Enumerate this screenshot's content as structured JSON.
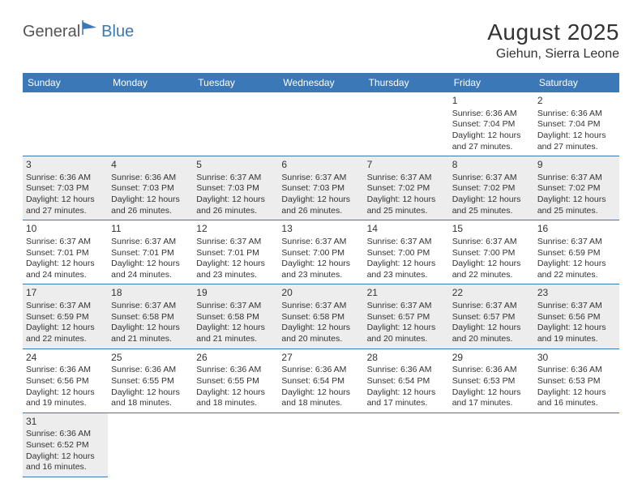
{
  "logo": {
    "part1": "General",
    "part2": "Blue"
  },
  "title": "August 2025",
  "location": "Giehun, Sierra Leone",
  "colors": {
    "header_bg": "#3b78b8",
    "header_text": "#ffffff",
    "shaded_bg": "#ededed",
    "text": "#333333",
    "border": "#3b78b8"
  },
  "weekdays": [
    "Sunday",
    "Monday",
    "Tuesday",
    "Wednesday",
    "Thursday",
    "Friday",
    "Saturday"
  ],
  "grid": [
    [
      {
        "blank": true
      },
      {
        "blank": true
      },
      {
        "blank": true
      },
      {
        "blank": true
      },
      {
        "blank": true
      },
      {
        "day": "1",
        "sunrise": "Sunrise: 6:36 AM",
        "sunset": "Sunset: 7:04 PM",
        "daylight": "Daylight: 12 hours and 27 minutes."
      },
      {
        "day": "2",
        "sunrise": "Sunrise: 6:36 AM",
        "sunset": "Sunset: 7:04 PM",
        "daylight": "Daylight: 12 hours and 27 minutes."
      }
    ],
    [
      {
        "day": "3",
        "shaded": true,
        "sunrise": "Sunrise: 6:36 AM",
        "sunset": "Sunset: 7:03 PM",
        "daylight": "Daylight: 12 hours and 27 minutes."
      },
      {
        "day": "4",
        "shaded": true,
        "sunrise": "Sunrise: 6:36 AM",
        "sunset": "Sunset: 7:03 PM",
        "daylight": "Daylight: 12 hours and 26 minutes."
      },
      {
        "day": "5",
        "shaded": true,
        "sunrise": "Sunrise: 6:37 AM",
        "sunset": "Sunset: 7:03 PM",
        "daylight": "Daylight: 12 hours and 26 minutes."
      },
      {
        "day": "6",
        "shaded": true,
        "sunrise": "Sunrise: 6:37 AM",
        "sunset": "Sunset: 7:03 PM",
        "daylight": "Daylight: 12 hours and 26 minutes."
      },
      {
        "day": "7",
        "shaded": true,
        "sunrise": "Sunrise: 6:37 AM",
        "sunset": "Sunset: 7:02 PM",
        "daylight": "Daylight: 12 hours and 25 minutes."
      },
      {
        "day": "8",
        "shaded": true,
        "sunrise": "Sunrise: 6:37 AM",
        "sunset": "Sunset: 7:02 PM",
        "daylight": "Daylight: 12 hours and 25 minutes."
      },
      {
        "day": "9",
        "shaded": true,
        "sunrise": "Sunrise: 6:37 AM",
        "sunset": "Sunset: 7:02 PM",
        "daylight": "Daylight: 12 hours and 25 minutes."
      }
    ],
    [
      {
        "day": "10",
        "sunrise": "Sunrise: 6:37 AM",
        "sunset": "Sunset: 7:01 PM",
        "daylight": "Daylight: 12 hours and 24 minutes."
      },
      {
        "day": "11",
        "sunrise": "Sunrise: 6:37 AM",
        "sunset": "Sunset: 7:01 PM",
        "daylight": "Daylight: 12 hours and 24 minutes."
      },
      {
        "day": "12",
        "sunrise": "Sunrise: 6:37 AM",
        "sunset": "Sunset: 7:01 PM",
        "daylight": "Daylight: 12 hours and 23 minutes."
      },
      {
        "day": "13",
        "sunrise": "Sunrise: 6:37 AM",
        "sunset": "Sunset: 7:00 PM",
        "daylight": "Daylight: 12 hours and 23 minutes."
      },
      {
        "day": "14",
        "sunrise": "Sunrise: 6:37 AM",
        "sunset": "Sunset: 7:00 PM",
        "daylight": "Daylight: 12 hours and 23 minutes."
      },
      {
        "day": "15",
        "sunrise": "Sunrise: 6:37 AM",
        "sunset": "Sunset: 7:00 PM",
        "daylight": "Daylight: 12 hours and 22 minutes."
      },
      {
        "day": "16",
        "sunrise": "Sunrise: 6:37 AM",
        "sunset": "Sunset: 6:59 PM",
        "daylight": "Daylight: 12 hours and 22 minutes."
      }
    ],
    [
      {
        "day": "17",
        "shaded": true,
        "sunrise": "Sunrise: 6:37 AM",
        "sunset": "Sunset: 6:59 PM",
        "daylight": "Daylight: 12 hours and 22 minutes."
      },
      {
        "day": "18",
        "shaded": true,
        "sunrise": "Sunrise: 6:37 AM",
        "sunset": "Sunset: 6:58 PM",
        "daylight": "Daylight: 12 hours and 21 minutes."
      },
      {
        "day": "19",
        "shaded": true,
        "sunrise": "Sunrise: 6:37 AM",
        "sunset": "Sunset: 6:58 PM",
        "daylight": "Daylight: 12 hours and 21 minutes."
      },
      {
        "day": "20",
        "shaded": true,
        "sunrise": "Sunrise: 6:37 AM",
        "sunset": "Sunset: 6:58 PM",
        "daylight": "Daylight: 12 hours and 20 minutes."
      },
      {
        "day": "21",
        "shaded": true,
        "sunrise": "Sunrise: 6:37 AM",
        "sunset": "Sunset: 6:57 PM",
        "daylight": "Daylight: 12 hours and 20 minutes."
      },
      {
        "day": "22",
        "shaded": true,
        "sunrise": "Sunrise: 6:37 AM",
        "sunset": "Sunset: 6:57 PM",
        "daylight": "Daylight: 12 hours and 20 minutes."
      },
      {
        "day": "23",
        "shaded": true,
        "sunrise": "Sunrise: 6:37 AM",
        "sunset": "Sunset: 6:56 PM",
        "daylight": "Daylight: 12 hours and 19 minutes."
      }
    ],
    [
      {
        "day": "24",
        "sunrise": "Sunrise: 6:36 AM",
        "sunset": "Sunset: 6:56 PM",
        "daylight": "Daylight: 12 hours and 19 minutes."
      },
      {
        "day": "25",
        "sunrise": "Sunrise: 6:36 AM",
        "sunset": "Sunset: 6:55 PM",
        "daylight": "Daylight: 12 hours and 18 minutes."
      },
      {
        "day": "26",
        "sunrise": "Sunrise: 6:36 AM",
        "sunset": "Sunset: 6:55 PM",
        "daylight": "Daylight: 12 hours and 18 minutes."
      },
      {
        "day": "27",
        "sunrise": "Sunrise: 6:36 AM",
        "sunset": "Sunset: 6:54 PM",
        "daylight": "Daylight: 12 hours and 18 minutes."
      },
      {
        "day": "28",
        "sunrise": "Sunrise: 6:36 AM",
        "sunset": "Sunset: 6:54 PM",
        "daylight": "Daylight: 12 hours and 17 minutes."
      },
      {
        "day": "29",
        "sunrise": "Sunrise: 6:36 AM",
        "sunset": "Sunset: 6:53 PM",
        "daylight": "Daylight: 12 hours and 17 minutes."
      },
      {
        "day": "30",
        "sunrise": "Sunrise: 6:36 AM",
        "sunset": "Sunset: 6:53 PM",
        "daylight": "Daylight: 12 hours and 16 minutes."
      }
    ],
    [
      {
        "day": "31",
        "shaded": true,
        "sunrise": "Sunrise: 6:36 AM",
        "sunset": "Sunset: 6:52 PM",
        "daylight": "Daylight: 12 hours and 16 minutes."
      },
      {
        "blank": true,
        "trailing": true
      },
      {
        "blank": true,
        "trailing": true
      },
      {
        "blank": true,
        "trailing": true
      },
      {
        "blank": true,
        "trailing": true
      },
      {
        "blank": true,
        "trailing": true
      },
      {
        "blank": true,
        "trailing": true
      }
    ]
  ]
}
